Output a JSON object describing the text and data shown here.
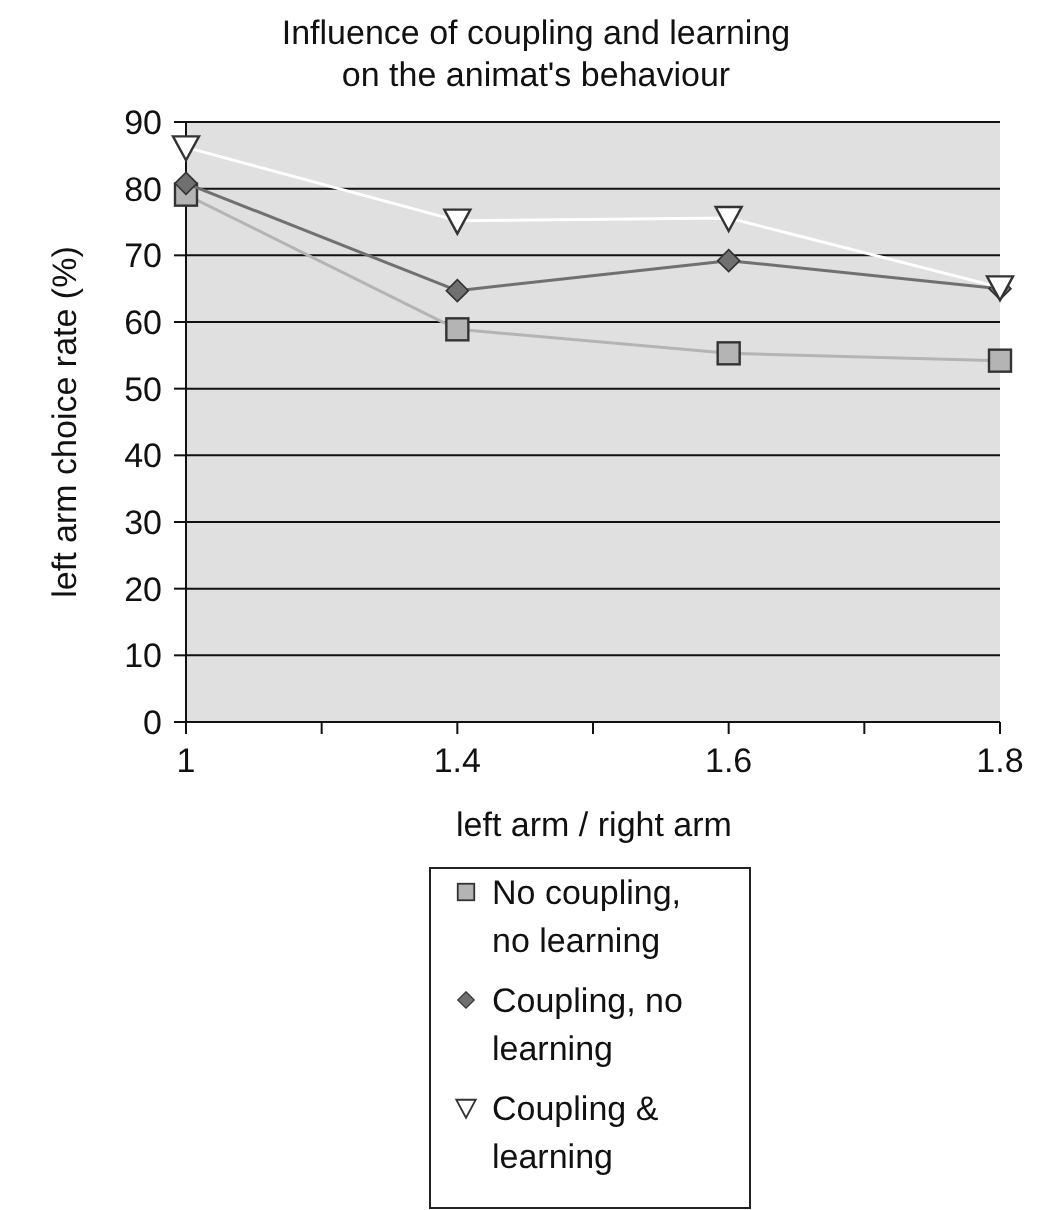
{
  "chart_data": {
    "type": "line",
    "title": "Influence of coupling and learning\non the animat's behaviour",
    "xlabel": "left arm / right arm",
    "ylabel": "left arm choice rate (%)",
    "categories": [
      "1",
      "1.4",
      "1.6",
      "1.8"
    ],
    "series": [
      {
        "name": "No coupling,\nno learning",
        "color": "#b4b4b4",
        "marker": "square",
        "values": [
          79.1,
          58.9,
          55.3,
          54.2
        ]
      },
      {
        "name": "Coupling, no\nlearning",
        "color": "#707070",
        "marker": "diamond",
        "values": [
          80.8,
          64.7,
          69.2,
          65
        ]
      },
      {
        "name": "Coupling &\nlearning",
        "color": "#ffffff",
        "marker": "triangle",
        "values": [
          86.2,
          75.2,
          75.6,
          65.2
        ]
      }
    ],
    "ylim": [
      0,
      90
    ],
    "yticks": [
      0,
      10,
      20,
      30,
      40,
      50,
      60,
      70,
      80,
      90
    ],
    "grid": "y",
    "legend": "bottom",
    "line_style": "solid"
  }
}
